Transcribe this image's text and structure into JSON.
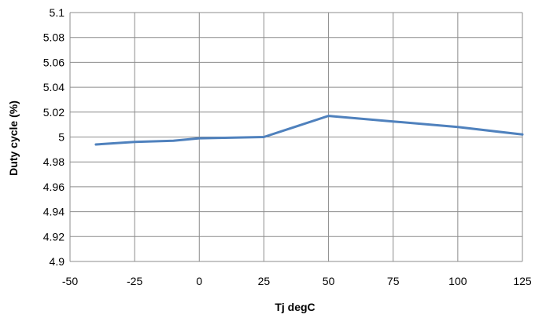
{
  "chart_data": {
    "type": "line",
    "title": "",
    "xlabel": "Tj degC",
    "ylabel": "Duty cycle (%)",
    "xlim": [
      -50,
      125
    ],
    "ylim": [
      4.9,
      5.1
    ],
    "x_ticks": [
      "-50",
      "-25",
      "0",
      "25",
      "50",
      "75",
      "100",
      "125"
    ],
    "y_ticks": [
      "4.9",
      "4.92",
      "4.94",
      "4.96",
      "4.98",
      "5",
      "5.02",
      "5.04",
      "5.06",
      "5.08",
      "5.1"
    ],
    "grid": true,
    "legend": "none",
    "series": [
      {
        "color": "#4f81bd",
        "x": [
          -40,
          -25,
          -10,
          0,
          25,
          50,
          75,
          100,
          125
        ],
        "y": [
          4.994,
          4.996,
          4.997,
          4.999,
          5.0,
          5.017,
          5.0125,
          5.008,
          5.002
        ]
      }
    ]
  }
}
